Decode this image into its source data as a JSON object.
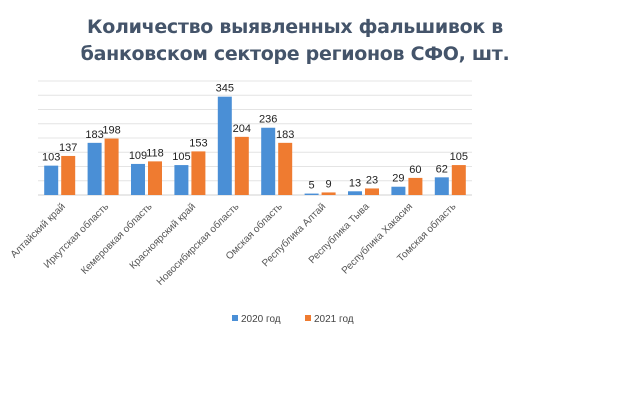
{
  "chart_data": {
    "type": "bar",
    "title_lines": [
      "Количество выявленных фальшивок в",
      "банковском секторе регионов СФО, шт."
    ],
    "categories": [
      "Алтайский край",
      "Иркутская область",
      "Кемеровкая область",
      "Красноярский край",
      "Новосибирская область",
      "Омская область",
      "Республика Алтай",
      "Республика Тыва",
      "Республика Хакасия",
      "Томская область"
    ],
    "series": [
      {
        "name": "2020 год",
        "color": "#4a8fd6",
        "values": [
          103,
          183,
          109,
          105,
          345,
          236,
          5,
          13,
          29,
          62
        ]
      },
      {
        "name": "2021 год",
        "color": "#ef7b30",
        "values": [
          137,
          198,
          118,
          153,
          204,
          183,
          9,
          23,
          60,
          105
        ]
      }
    ],
    "ylim": [
      0,
      400
    ],
    "grid": true,
    "legend_position": "bottom",
    "data_labels": true
  }
}
